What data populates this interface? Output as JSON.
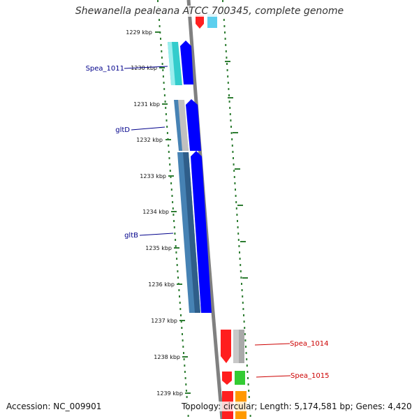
{
  "title": "Shewanella pealeana ATCC 700345, complete genome",
  "accession": "Accession: NC_009901",
  "topology": "Topology: circular; Length: 5,174,581 bp; Genes: 4,420",
  "ticks": [
    "1229 kbp",
    "1230 kbp",
    "1231 kbp",
    "1232 kbp",
    "1233 kbp",
    "1234 kbp",
    "1235 kbp",
    "1236 kbp",
    "1237 kbp",
    "1238 kbp",
    "1239 kbp"
  ],
  "gene_labels": [
    {
      "name": "Spea_1011",
      "color": "#00008b"
    },
    {
      "name": "gltD",
      "color": "#00008b"
    },
    {
      "name": "gltB",
      "color": "#00008b"
    },
    {
      "name": "Spea_1014",
      "color": "#cc0000"
    },
    {
      "name": "Spea_1015",
      "color": "#cc0000"
    }
  ],
  "colors": {
    "backbone": "#808080",
    "tick_dots": "#2e7d32",
    "cds_forward": "#0000ff",
    "cds_reverse": "#ff0000",
    "cog_cyan": "#33cccc",
    "cog_steelblue": "#4682b4",
    "cog_gray": "#c0c0c0",
    "cog_green": "#33cc33",
    "cog_orange": "#ff9900"
  }
}
